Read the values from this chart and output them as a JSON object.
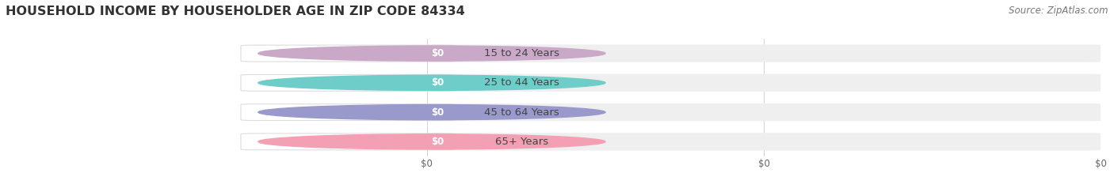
{
  "title": "HOUSEHOLD INCOME BY HOUSEHOLDER AGE IN ZIP CODE 84334",
  "source_text": "Source: ZipAtlas.com",
  "categories": [
    "15 to 24 Years",
    "25 to 44 Years",
    "45 to 64 Years",
    "65+ Years"
  ],
  "values": [
    0,
    0,
    0,
    0
  ],
  "bar_colors": [
    "#c9a8c8",
    "#6ecdc8",
    "#9999cc",
    "#f4a0b4"
  ],
  "bar_bg_color": "#efefef",
  "background_color": "#ffffff",
  "title_fontsize": 11.5,
  "source_fontsize": 8.5,
  "label_fontsize": 9.5,
  "val_fontsize": 8.5,
  "tick_fontsize": 8.5
}
